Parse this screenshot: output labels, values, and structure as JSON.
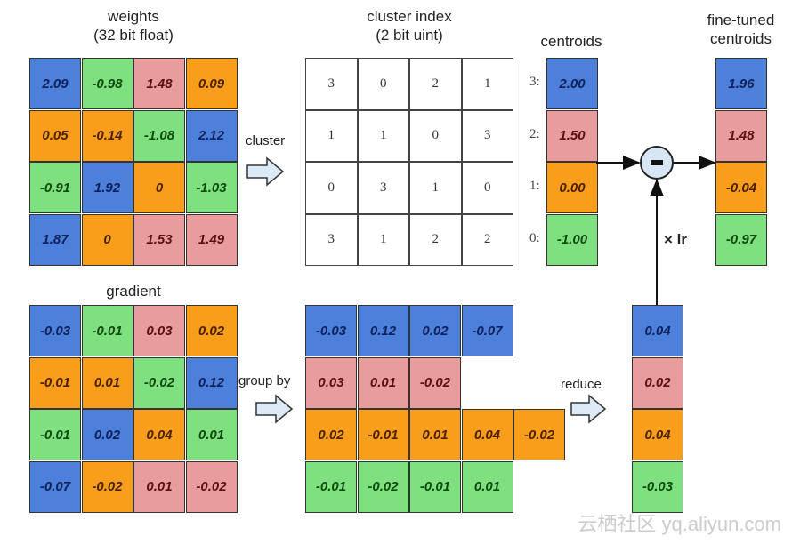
{
  "titles": {
    "weights": "weights",
    "weights_sub": "(32 bit float)",
    "cluster_index": "cluster index",
    "cluster_index_sub": "(2 bit uint)",
    "centroids": "centroids",
    "fine_tuned": "fine-tuned",
    "fine_tuned_sub": "centroids",
    "gradient": "gradient"
  },
  "operations": {
    "cluster": "cluster",
    "group_by": "group by",
    "reduce": "reduce",
    "lr": "× lr",
    "minus": "-"
  },
  "colors": {
    "3": "#4c80da",
    "2": "#e89c9c",
    "1": "#f99e1a",
    "0": "#7ee07e"
  },
  "weights": [
    [
      "2.09",
      "-0.98",
      "1.48",
      "0.09"
    ],
    [
      "0.05",
      "-0.14",
      "-1.08",
      "2.12"
    ],
    [
      "-0.91",
      "1.92",
      "0",
      "-1.03"
    ],
    [
      "1.87",
      "0",
      "1.53",
      "1.49"
    ]
  ],
  "cluster_index": [
    [
      "3",
      "0",
      "2",
      "1"
    ],
    [
      "1",
      "1",
      "0",
      "3"
    ],
    [
      "0",
      "3",
      "1",
      "0"
    ],
    [
      "3",
      "1",
      "2",
      "2"
    ]
  ],
  "gradient": [
    [
      "-0.03",
      "-0.01",
      "0.03",
      "0.02"
    ],
    [
      "-0.01",
      "0.01",
      "-0.02",
      "0.12"
    ],
    [
      "-0.01",
      "0.02",
      "0.04",
      "0.01"
    ],
    [
      "-0.07",
      "-0.02",
      "0.01",
      "-0.02"
    ]
  ],
  "centroids": [
    {
      "label": "3:",
      "value": "2.00",
      "cluster": 3
    },
    {
      "label": "2:",
      "value": "1.50",
      "cluster": 2
    },
    {
      "label": "1:",
      "value": "0.00",
      "cluster": 1
    },
    {
      "label": "0:",
      "value": "-1.00",
      "cluster": 0
    }
  ],
  "grouped": [
    {
      "cluster": 3,
      "values": [
        "-0.03",
        "0.12",
        "0.02",
        "-0.07"
      ]
    },
    {
      "cluster": 2,
      "values": [
        "0.03",
        "0.01",
        "-0.02"
      ]
    },
    {
      "cluster": 1,
      "values": [
        "0.02",
        "-0.01",
        "0.01",
        "0.04",
        "-0.02"
      ]
    },
    {
      "cluster": 0,
      "values": [
        "-0.01",
        "-0.02",
        "-0.01",
        "0.01"
      ]
    }
  ],
  "reduced": [
    {
      "value": "0.04",
      "cluster": 3
    },
    {
      "value": "0.02",
      "cluster": 2
    },
    {
      "value": "0.04",
      "cluster": 1
    },
    {
      "value": "-0.03",
      "cluster": 0
    }
  ],
  "fine_tuned": [
    {
      "value": "1.96",
      "cluster": 3
    },
    {
      "value": "1.48",
      "cluster": 2
    },
    {
      "value": "-0.04",
      "cluster": 1
    },
    {
      "value": "-0.97",
      "cluster": 0
    }
  ],
  "watermark": "云栖社区 yq.aliyun.com"
}
